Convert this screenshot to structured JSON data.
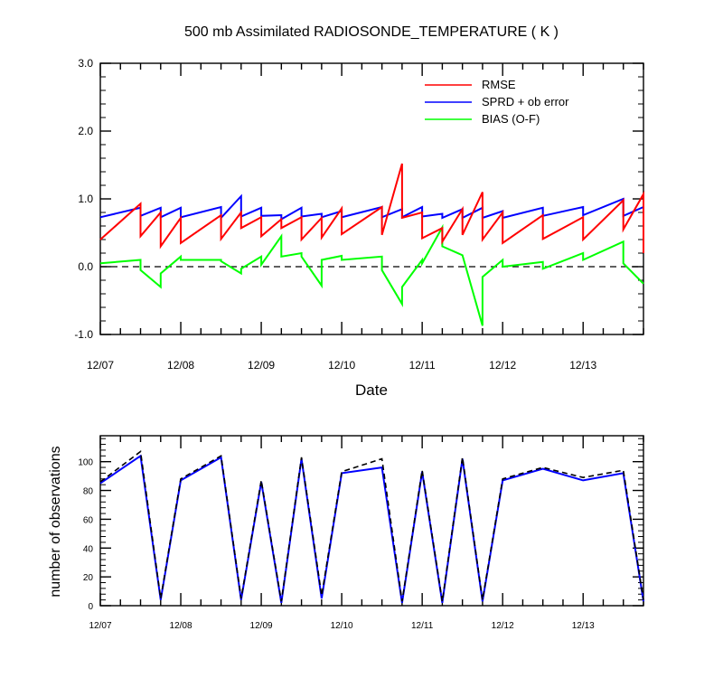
{
  "chart_data": [
    {
      "type": "line",
      "title": "500 mb Assimilated RADIOSONDE_TEMPERATURE ( K )",
      "xlabel": "Date",
      "ylabel": "",
      "xlim": [
        0,
        6.75
      ],
      "ylim": [
        -1.0,
        3.0
      ],
      "yticks": [
        -1.0,
        0.0,
        1.0,
        2.0,
        3.0
      ],
      "ytick_labels": [
        "-1.0",
        "0.0",
        "1.0",
        "2.0",
        "3.0"
      ],
      "xtick_labels": [
        "12/07",
        "12/08",
        "12/09",
        "12/10",
        "12/11",
        "12/12",
        "12/13"
      ],
      "reference_line": 0.0,
      "legend": "top-right",
      "colors": {
        "RMSE": "#ff0000",
        "SPRD + ob error": "#0000ff",
        "BIAS (O-F)": "#00ff00"
      },
      "series": [
        {
          "name": "RMSE",
          "segments": [
            [
              [
                0.0,
                0.4
              ],
              [
                0.5,
                0.93
              ]
            ],
            [
              [
                0.5,
                0.45
              ],
              [
                0.75,
                0.8
              ]
            ],
            [
              [
                0.75,
                0.3
              ],
              [
                1.0,
                0.72
              ]
            ],
            [
              [
                1.0,
                0.35
              ],
              [
                1.5,
                0.76
              ]
            ],
            [
              [
                1.5,
                0.41
              ],
              [
                1.75,
                0.8
              ]
            ],
            [
              [
                1.75,
                0.57
              ],
              [
                2.0,
                0.73
              ]
            ],
            [
              [
                2.0,
                0.45
              ],
              [
                2.25,
                0.7
              ]
            ],
            [
              [
                2.25,
                0.57
              ],
              [
                2.5,
                0.73
              ]
            ],
            [
              [
                2.5,
                0.4
              ],
              [
                2.75,
                0.72
              ]
            ],
            [
              [
                2.75,
                0.43
              ],
              [
                3.0,
                0.86
              ]
            ],
            [
              [
                3.0,
                0.48
              ],
              [
                3.5,
                0.88
              ]
            ],
            [
              [
                3.5,
                0.47
              ],
              [
                3.75,
                1.52
              ]
            ],
            [
              [
                3.75,
                0.72
              ],
              [
                4.0,
                0.8
              ]
            ],
            [
              [
                4.0,
                0.42
              ],
              [
                4.25,
                0.57
              ]
            ],
            [
              [
                4.25,
                0.37
              ],
              [
                4.5,
                0.85
              ]
            ],
            [
              [
                4.5,
                0.47
              ],
              [
                4.75,
                1.1
              ]
            ],
            [
              [
                4.75,
                0.4
              ],
              [
                5.0,
                0.8
              ]
            ],
            [
              [
                5.0,
                0.35
              ],
              [
                5.5,
                0.76
              ]
            ],
            [
              [
                5.5,
                0.41
              ],
              [
                6.0,
                0.73
              ]
            ],
            [
              [
                6.0,
                0.4
              ],
              [
                6.5,
                0.98
              ]
            ],
            [
              [
                6.5,
                0.55
              ],
              [
                6.75,
                1.07
              ]
            ],
            [
              [
                6.75,
                0.2
              ]
            ]
          ]
        },
        {
          "name": "SPRD + ob error",
          "segments": [
            [
              [
                0.0,
                0.73
              ],
              [
                0.5,
                0.87
              ]
            ],
            [
              [
                0.5,
                0.75
              ],
              [
                0.75,
                0.87
              ]
            ],
            [
              [
                0.75,
                0.73
              ],
              [
                1.0,
                0.87
              ]
            ],
            [
              [
                1.0,
                0.73
              ],
              [
                1.5,
                0.88
              ]
            ],
            [
              [
                1.5,
                0.72
              ],
              [
                1.75,
                1.04
              ]
            ],
            [
              [
                1.75,
                0.74
              ],
              [
                2.0,
                0.87
              ]
            ],
            [
              [
                2.0,
                0.75
              ],
              [
                2.25,
                0.76
              ]
            ],
            [
              [
                2.25,
                0.7
              ],
              [
                2.5,
                0.87
              ]
            ],
            [
              [
                2.5,
                0.74
              ],
              [
                2.75,
                0.78
              ]
            ],
            [
              [
                2.75,
                0.73
              ],
              [
                3.0,
                0.82
              ]
            ],
            [
              [
                3.0,
                0.73
              ],
              [
                3.5,
                0.88
              ]
            ],
            [
              [
                3.5,
                0.73
              ],
              [
                3.75,
                0.85
              ]
            ],
            [
              [
                3.75,
                0.73
              ],
              [
                4.0,
                0.88
              ]
            ],
            [
              [
                4.0,
                0.74
              ],
              [
                4.25,
                0.78
              ]
            ],
            [
              [
                4.25,
                0.72
              ],
              [
                4.5,
                0.85
              ]
            ],
            [
              [
                4.5,
                0.72
              ],
              [
                4.75,
                0.87
              ]
            ],
            [
              [
                4.75,
                0.72
              ],
              [
                5.0,
                0.82
              ]
            ],
            [
              [
                5.0,
                0.72
              ],
              [
                5.5,
                0.87
              ]
            ],
            [
              [
                5.5,
                0.75
              ],
              [
                6.0,
                0.88
              ]
            ],
            [
              [
                6.0,
                0.76
              ],
              [
                6.5,
                1.0
              ]
            ],
            [
              [
                6.5,
                0.75
              ],
              [
                6.75,
                0.88
              ]
            ]
          ]
        },
        {
          "name": "BIAS (O-F)",
          "segments": [
            [
              [
                0.0,
                0.05
              ],
              [
                0.5,
                0.1
              ]
            ],
            [
              [
                0.5,
                -0.05
              ],
              [
                0.75,
                -0.3
              ]
            ],
            [
              [
                0.75,
                -0.1
              ],
              [
                1.0,
                0.15
              ]
            ],
            [
              [
                1.0,
                0.1
              ],
              [
                1.5,
                0.1
              ]
            ],
            [
              [
                1.5,
                0.08
              ],
              [
                1.75,
                -0.1
              ]
            ],
            [
              [
                1.75,
                -0.03
              ],
              [
                2.0,
                0.15
              ]
            ],
            [
              [
                2.0,
                0.03
              ],
              [
                2.25,
                0.45
              ]
            ],
            [
              [
                2.25,
                0.15
              ],
              [
                2.5,
                0.2
              ]
            ],
            [
              [
                2.5,
                0.15
              ],
              [
                2.75,
                -0.28
              ]
            ],
            [
              [
                2.75,
                0.1
              ],
              [
                3.0,
                0.16
              ]
            ],
            [
              [
                3.0,
                0.1
              ],
              [
                3.5,
                0.15
              ]
            ],
            [
              [
                3.5,
                -0.05
              ],
              [
                3.75,
                -0.55
              ]
            ],
            [
              [
                3.75,
                -0.3
              ],
              [
                4.0,
                0.1
              ]
            ],
            [
              [
                4.0,
                0.05
              ],
              [
                4.25,
                0.58
              ]
            ],
            [
              [
                4.25,
                0.3
              ],
              [
                4.5,
                0.17
              ]
            ],
            [
              [
                4.5,
                0.17
              ],
              [
                4.75,
                -0.87
              ]
            ],
            [
              [
                4.75,
                -0.15
              ],
              [
                5.0,
                0.1
              ]
            ],
            [
              [
                5.0,
                0.0
              ],
              [
                5.5,
                0.07
              ]
            ],
            [
              [
                5.5,
                -0.03
              ],
              [
                6.0,
                0.2
              ]
            ],
            [
              [
                6.0,
                0.1
              ],
              [
                6.5,
                0.37
              ]
            ],
            [
              [
                6.5,
                0.05
              ],
              [
                6.75,
                -0.25
              ]
            ]
          ]
        }
      ]
    },
    {
      "type": "line",
      "title": "",
      "xlabel": "",
      "ylabel": "number of observations",
      "xlim": [
        0,
        6.75
      ],
      "ylim": [
        0,
        118
      ],
      "yticks": [
        0,
        20,
        40,
        60,
        80,
        100
      ],
      "ytick_labels": [
        "0",
        "20",
        "40",
        "60",
        "80",
        "100"
      ],
      "xtick_labels": [
        "12/07",
        "12/08",
        "12/09",
        "12/10",
        "12/11",
        "12/12",
        "12/13"
      ],
      "x": [
        0.0,
        0.5,
        0.75,
        1.0,
        1.5,
        1.75,
        2.0,
        2.25,
        2.5,
        2.75,
        3.0,
        3.5,
        3.75,
        4.0,
        4.25,
        4.5,
        4.75,
        5.0,
        5.5,
        6.0,
        6.5,
        6.75
      ],
      "colors": {
        "used": "#0000ff",
        "possible": "#000000"
      },
      "series": [
        {
          "name": "",
          "style": "solid",
          "values": [
            85,
            104,
            4,
            87,
            103,
            4,
            86,
            2,
            102,
            5,
            92,
            96,
            2,
            93,
            2,
            102,
            3,
            87,
            95,
            87,
            92,
            3
          ]
        },
        {
          "name": "",
          "style": "dashed",
          "values": [
            86,
            107,
            5,
            88,
            104,
            5,
            87,
            3,
            103,
            7,
            93,
            102,
            3,
            94,
            3,
            103,
            4,
            88,
            96,
            89,
            94,
            4
          ]
        }
      ]
    }
  ]
}
